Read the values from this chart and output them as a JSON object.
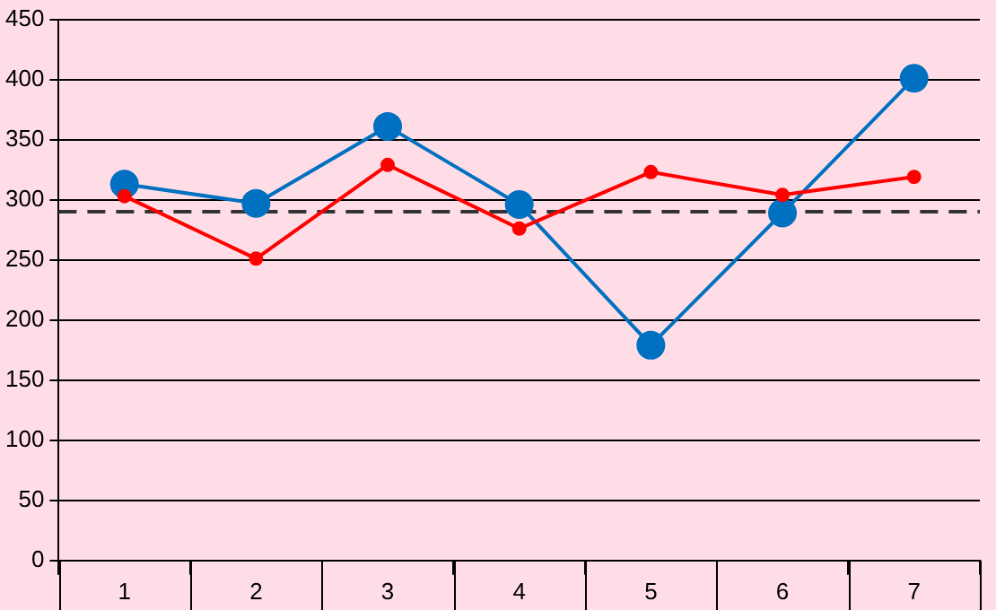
{
  "chart_data": {
    "type": "line",
    "categories": [
      "1",
      "2",
      "3",
      "4",
      "5",
      "6",
      "7"
    ],
    "series": [
      {
        "color": "#ff0000",
        "values": [
          303,
          251,
          329,
          276,
          323,
          304,
          319
        ]
      },
      {
        "color": "#0070c0",
        "values": [
          313,
          297,
          361,
          296,
          179,
          289,
          401
        ]
      }
    ],
    "ylim": [
      0,
      450
    ],
    "yticks": [
      0,
      50,
      100,
      150,
      200,
      250,
      300,
      350,
      400,
      450
    ],
    "grid": "y",
    "legend": false,
    "marker": "circle",
    "line_style": "solid",
    "ref_lines": [
      {
        "axis": "y",
        "value": 290,
        "color": "#333333",
        "line_style": "dashed"
      }
    ]
  }
}
